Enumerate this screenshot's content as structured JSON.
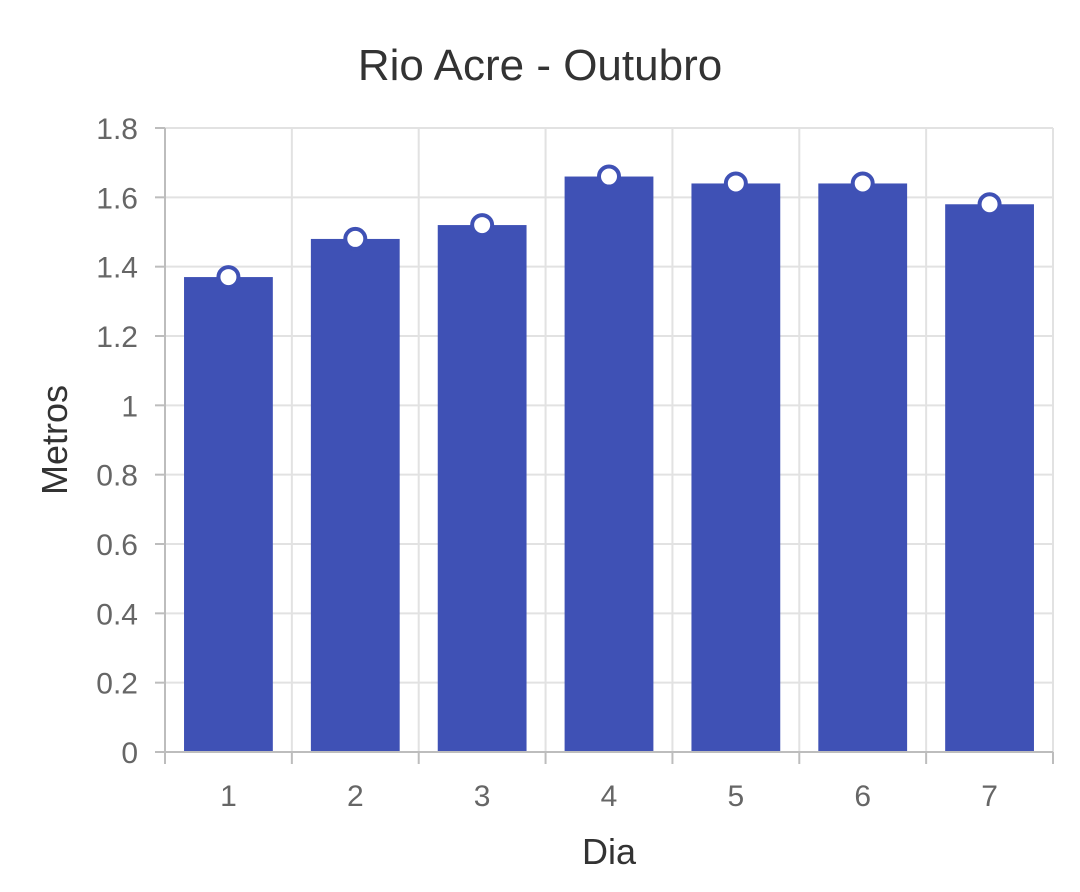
{
  "chart_data": {
    "type": "bar",
    "title": "Rio Acre - Outubro",
    "xlabel": "Dia",
    "ylabel": "Metros",
    "categories": [
      "1",
      "2",
      "3",
      "4",
      "5",
      "6",
      "7"
    ],
    "values": [
      1.37,
      1.48,
      1.52,
      1.66,
      1.64,
      1.64,
      1.58
    ],
    "ylim": [
      0,
      1.8
    ],
    "yticks": [
      "0",
      "0.2",
      "0.4",
      "0.6",
      "0.8",
      "1",
      "1.2",
      "1.4",
      "1.6",
      "1.8"
    ],
    "grid": true,
    "markers": true,
    "colors": {
      "bar": "#3f51b5",
      "marker_fill": "#ffffff"
    }
  }
}
